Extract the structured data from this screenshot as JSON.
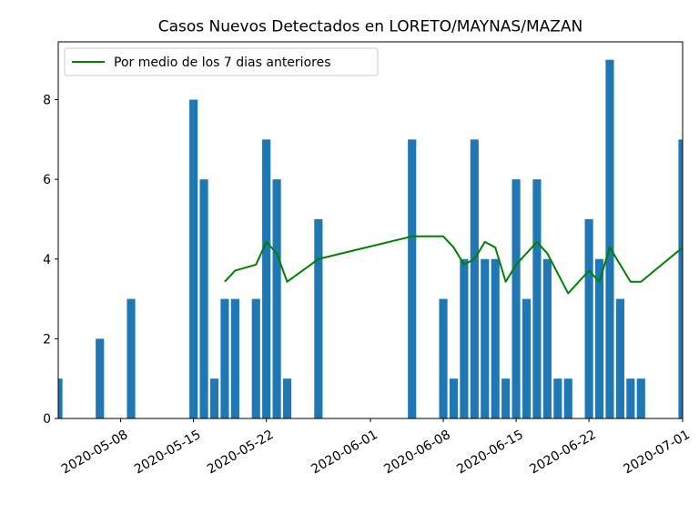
{
  "chart_data": {
    "type": "bar",
    "title": "Casos Nuevos Detectados en LORETO/MAYNAS/MAZAN",
    "xlabel": "",
    "ylabel": "",
    "xlim": [
      "2020-05-02",
      "2020-07-01"
    ],
    "ylim": [
      0,
      9.45
    ],
    "x_ticks": [
      "2020-05-08",
      "2020-05-15",
      "2020-05-22",
      "2020-06-01",
      "2020-06-08",
      "2020-06-15",
      "2020-06-22",
      "2020-07-01"
    ],
    "y_ticks": [
      0,
      2,
      4,
      6,
      8
    ],
    "legend_position": "upper-left",
    "grid": false,
    "series": [
      {
        "type": "bar",
        "color": "#1f77b4",
        "points": [
          {
            "date": "2020-05-02",
            "value": 1
          },
          {
            "date": "2020-05-06",
            "value": 2
          },
          {
            "date": "2020-05-09",
            "value": 3
          },
          {
            "date": "2020-05-15",
            "value": 8
          },
          {
            "date": "2020-05-16",
            "value": 6
          },
          {
            "date": "2020-05-17",
            "value": 1
          },
          {
            "date": "2020-05-18",
            "value": 3
          },
          {
            "date": "2020-05-19",
            "value": 3
          },
          {
            "date": "2020-05-21",
            "value": 3
          },
          {
            "date": "2020-05-22",
            "value": 7
          },
          {
            "date": "2020-05-23",
            "value": 6
          },
          {
            "date": "2020-05-24",
            "value": 1
          },
          {
            "date": "2020-05-27",
            "value": 5
          },
          {
            "date": "2020-06-05",
            "value": 7
          },
          {
            "date": "2020-06-08",
            "value": 3
          },
          {
            "date": "2020-06-09",
            "value": 1
          },
          {
            "date": "2020-06-10",
            "value": 4
          },
          {
            "date": "2020-06-11",
            "value": 7
          },
          {
            "date": "2020-06-12",
            "value": 4
          },
          {
            "date": "2020-06-13",
            "value": 4
          },
          {
            "date": "2020-06-14",
            "value": 1
          },
          {
            "date": "2020-06-15",
            "value": 6
          },
          {
            "date": "2020-06-16",
            "value": 3
          },
          {
            "date": "2020-06-17",
            "value": 6
          },
          {
            "date": "2020-06-18",
            "value": 4
          },
          {
            "date": "2020-06-19",
            "value": 1
          },
          {
            "date": "2020-06-20",
            "value": 1
          },
          {
            "date": "2020-06-22",
            "value": 5
          },
          {
            "date": "2020-06-23",
            "value": 4
          },
          {
            "date": "2020-06-24",
            "value": 9
          },
          {
            "date": "2020-06-25",
            "value": 3
          },
          {
            "date": "2020-06-26",
            "value": 1
          },
          {
            "date": "2020-06-27",
            "value": 1
          },
          {
            "date": "2020-07-01",
            "value": 7
          }
        ]
      },
      {
        "type": "line",
        "name": "Por medio de los 7 dias anteriores",
        "color": "#008000",
        "points": [
          {
            "date": "2020-05-18",
            "value": 3.43
          },
          {
            "date": "2020-05-19",
            "value": 3.71
          },
          {
            "date": "2020-05-21",
            "value": 3.86
          },
          {
            "date": "2020-05-22",
            "value": 4.43
          },
          {
            "date": "2020-05-23",
            "value": 4.14
          },
          {
            "date": "2020-05-24",
            "value": 3.43
          },
          {
            "date": "2020-05-27",
            "value": 4.0
          },
          {
            "date": "2020-06-05",
            "value": 4.57
          },
          {
            "date": "2020-06-08",
            "value": 4.57
          },
          {
            "date": "2020-06-09",
            "value": 4.29
          },
          {
            "date": "2020-06-10",
            "value": 3.86
          },
          {
            "date": "2020-06-11",
            "value": 4.0
          },
          {
            "date": "2020-06-12",
            "value": 4.43
          },
          {
            "date": "2020-06-13",
            "value": 4.29
          },
          {
            "date": "2020-06-14",
            "value": 3.43
          },
          {
            "date": "2020-06-15",
            "value": 3.86
          },
          {
            "date": "2020-06-17",
            "value": 4.43
          },
          {
            "date": "2020-06-18",
            "value": 4.14
          },
          {
            "date": "2020-06-20",
            "value": 3.14
          },
          {
            "date": "2020-06-22",
            "value": 3.71
          },
          {
            "date": "2020-06-23",
            "value": 3.43
          },
          {
            "date": "2020-06-24",
            "value": 4.29
          },
          {
            "date": "2020-06-26",
            "value": 3.43
          },
          {
            "date": "2020-06-27",
            "value": 3.43
          },
          {
            "date": "2020-07-01",
            "value": 4.29
          }
        ]
      }
    ]
  }
}
